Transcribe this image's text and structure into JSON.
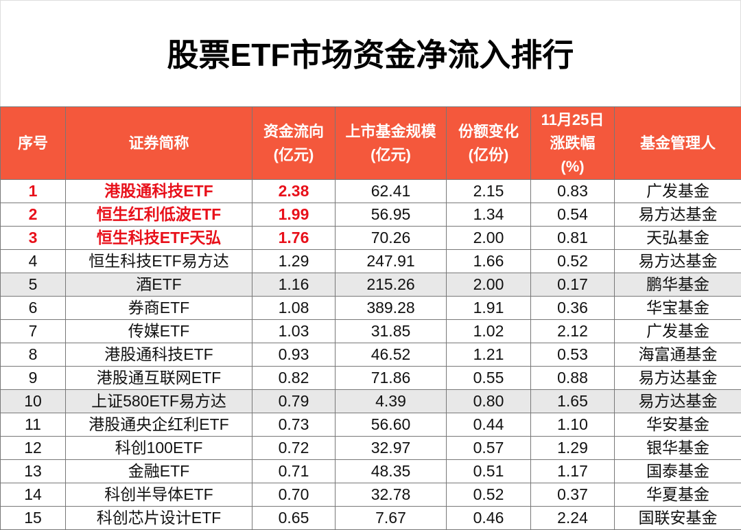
{
  "title": "股票ETF市场资金净流入排行",
  "table": {
    "header": [
      [
        "序号"
      ],
      [
        "证券简称"
      ],
      [
        "资金流向",
        "(亿元)"
      ],
      [
        "上市基金规模",
        "(亿元)"
      ],
      [
        "份额变化",
        "(亿份)"
      ],
      [
        "11月25日",
        "涨跌幅",
        "(%)"
      ],
      [
        "基金管理人"
      ]
    ],
    "rows": [
      [
        "1",
        "港股通科技ETF",
        "2.38",
        "62.41",
        "2.15",
        "0.83",
        "广发基金"
      ],
      [
        "2",
        "恒生红利低波ETF",
        "1.99",
        "56.95",
        "1.34",
        "0.54",
        "易方达基金"
      ],
      [
        "3",
        "恒生科技ETF天弘",
        "1.76",
        "70.26",
        "2.00",
        "0.81",
        "天弘基金"
      ],
      [
        "4",
        "恒生科技ETF易方达",
        "1.29",
        "247.91",
        "1.66",
        "0.52",
        "易方达基金"
      ],
      [
        "5",
        "酒ETF",
        "1.16",
        "215.26",
        "2.00",
        "0.17",
        "鹏华基金"
      ],
      [
        "6",
        "券商ETF",
        "1.08",
        "389.28",
        "1.91",
        "0.36",
        "华宝基金"
      ],
      [
        "7",
        "传媒ETF",
        "1.03",
        "31.85",
        "1.02",
        "2.12",
        "广发基金"
      ],
      [
        "8",
        "港股通科技ETF",
        "0.93",
        "46.52",
        "1.21",
        "0.53",
        "海富通基金"
      ],
      [
        "9",
        "港股通互联网ETF",
        "0.82",
        "71.86",
        "0.55",
        "0.88",
        "易方达基金"
      ],
      [
        "10",
        "上证580ETF易方达",
        "0.79",
        "4.39",
        "0.80",
        "1.65",
        "易方达基金"
      ],
      [
        "11",
        "港股通央企红利ETF",
        "0.73",
        "56.60",
        "0.44",
        "1.10",
        "华安基金"
      ],
      [
        "12",
        "科创100ETF",
        "0.72",
        "32.97",
        "0.57",
        "1.29",
        "银华基金"
      ],
      [
        "13",
        "金融ETF",
        "0.71",
        "48.35",
        "0.51",
        "1.17",
        "国泰基金"
      ],
      [
        "14",
        "科创半导体ETF",
        "0.70",
        "32.78",
        "0.52",
        "0.37",
        "华夏基金"
      ],
      [
        "15",
        "科创芯片设计ETF",
        "0.65",
        "7.67",
        "0.46",
        "2.24",
        "国联安基金"
      ]
    ]
  }
}
